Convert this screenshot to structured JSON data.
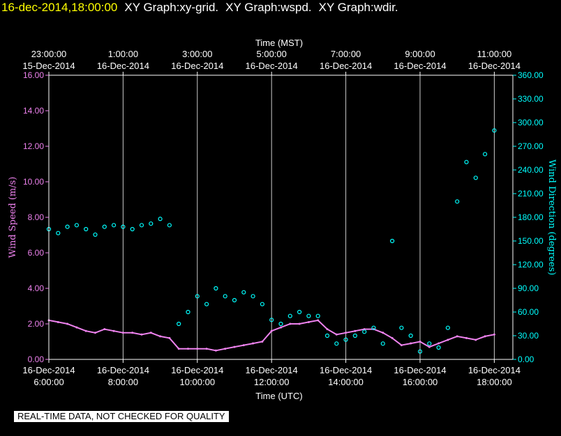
{
  "header": {
    "timestamp": "16-dec-2014,18:00:00",
    "graph_titles": [
      "XY Graph:xy-grid.",
      "XY Graph:wspd.",
      "XY Graph:wdir."
    ]
  },
  "notice": "REAL-TIME DATA, NOT CHECKED FOR QUALITY",
  "colors": {
    "wind_speed": "#ee82ee",
    "wind_direction": "#00ffff",
    "axis": "#ffffff",
    "timestamp": "#ffff00",
    "grid": "#ffffff"
  },
  "chart_data": {
    "type": "scatter",
    "grid": true,
    "x_top_label": "Time (MST)",
    "x_bottom_label": "Time (UTC)",
    "xlim_utc_hours": [
      6,
      18.5
    ],
    "bottom_ticks": [
      {
        "time": "6:00:00",
        "date": "16-Dec-2014",
        "hour": 6
      },
      {
        "time": "8:00:00",
        "date": "16-Dec-2014",
        "hour": 8
      },
      {
        "time": "10:00:00",
        "date": "16-Dec-2014",
        "hour": 10
      },
      {
        "time": "12:00:00",
        "date": "16-Dec-2014",
        "hour": 12
      },
      {
        "time": "14:00:00",
        "date": "16-Dec-2014",
        "hour": 14
      },
      {
        "time": "16:00:00",
        "date": "16-Dec-2014",
        "hour": 16
      },
      {
        "time": "18:00:00",
        "date": "16-Dec-2014",
        "hour": 18
      }
    ],
    "top_ticks": [
      {
        "time": "23:00:00",
        "date": "15-Dec-2014",
        "hour": 6
      },
      {
        "time": "1:00:00",
        "date": "16-Dec-2014",
        "hour": 8
      },
      {
        "time": "3:00:00",
        "date": "16-Dec-2014",
        "hour": 10
      },
      {
        "time": "5:00:00",
        "date": "16-Dec-2014",
        "hour": 12
      },
      {
        "time": "7:00:00",
        "date": "16-Dec-2014",
        "hour": 14
      },
      {
        "time": "9:00:00",
        "date": "16-Dec-2014",
        "hour": 16
      },
      {
        "time": "11:00:00",
        "date": "16-Dec-2014",
        "hour": 18
      }
    ],
    "left_axis": {
      "label": "Wind Speed (m/s)",
      "ylim": [
        0,
        16
      ],
      "ticks": [
        "0.00",
        "2.00",
        "4.00",
        "6.00",
        "8.00",
        "10.00",
        "12.00",
        "14.00",
        "16.00"
      ]
    },
    "right_axis": {
      "label": "Wind Direction (degrees)",
      "ylim": [
        0,
        360
      ],
      "ticks": [
        "0.00",
        "30.00",
        "60.00",
        "90.00",
        "120.00",
        "150.00",
        "180.00",
        "210.00",
        "240.00",
        "270.00",
        "300.00",
        "330.00",
        "360.00"
      ]
    },
    "series": [
      {
        "key": "wspd",
        "style": "line",
        "x": [
          6.0,
          6.25,
          6.5,
          6.75,
          7.0,
          7.25,
          7.5,
          7.75,
          8.0,
          8.25,
          8.5,
          8.75,
          9.0,
          9.25,
          9.5,
          9.75,
          10.0,
          10.25,
          10.5,
          10.75,
          11.0,
          11.25,
          11.5,
          11.75,
          12.0,
          12.25,
          12.5,
          12.75,
          13.0,
          13.25,
          13.5,
          13.75,
          14.0,
          14.25,
          14.5,
          14.75,
          15.0,
          15.25,
          15.5,
          15.75,
          16.0,
          16.25,
          16.5,
          16.75,
          17.0,
          17.25,
          17.5,
          17.75,
          18.0
        ],
        "y": [
          2.2,
          2.1,
          2.0,
          1.8,
          1.6,
          1.5,
          1.7,
          1.6,
          1.5,
          1.5,
          1.4,
          1.5,
          1.3,
          1.2,
          0.6,
          0.6,
          0.6,
          0.6,
          0.5,
          0.6,
          0.7,
          0.8,
          0.9,
          1.0,
          1.6,
          1.8,
          2.0,
          2.0,
          2.1,
          2.2,
          1.7,
          1.4,
          1.5,
          1.6,
          1.7,
          1.7,
          1.5,
          1.2,
          0.8,
          0.9,
          1.0,
          0.7,
          0.9,
          1.1,
          1.3,
          1.2,
          1.1,
          1.3,
          1.4
        ]
      },
      {
        "key": "wdir",
        "style": "points",
        "x": [
          6.0,
          6.25,
          6.5,
          6.75,
          7.0,
          7.25,
          7.5,
          7.75,
          8.0,
          8.25,
          8.5,
          8.75,
          9.0,
          9.25,
          9.5,
          9.75,
          10.0,
          10.25,
          10.5,
          10.75,
          11.0,
          11.25,
          11.5,
          11.75,
          12.0,
          12.25,
          12.5,
          12.75,
          13.0,
          13.25,
          13.5,
          13.75,
          14.0,
          14.25,
          14.5,
          14.75,
          15.0,
          15.25,
          15.5,
          15.75,
          16.0,
          16.25,
          16.5,
          16.75,
          17.0,
          17.25,
          17.5,
          17.75,
          18.0
        ],
        "y": [
          165,
          160,
          168,
          170,
          165,
          158,
          168,
          170,
          168,
          165,
          170,
          172,
          178,
          170,
          45,
          60,
          80,
          70,
          90,
          80,
          75,
          85,
          80,
          70,
          50,
          45,
          55,
          60,
          55,
          55,
          30,
          20,
          25,
          30,
          35,
          40,
          20,
          150,
          40,
          30,
          10,
          20,
          15,
          40,
          200,
          250,
          230,
          260,
          290
        ]
      }
    ]
  }
}
